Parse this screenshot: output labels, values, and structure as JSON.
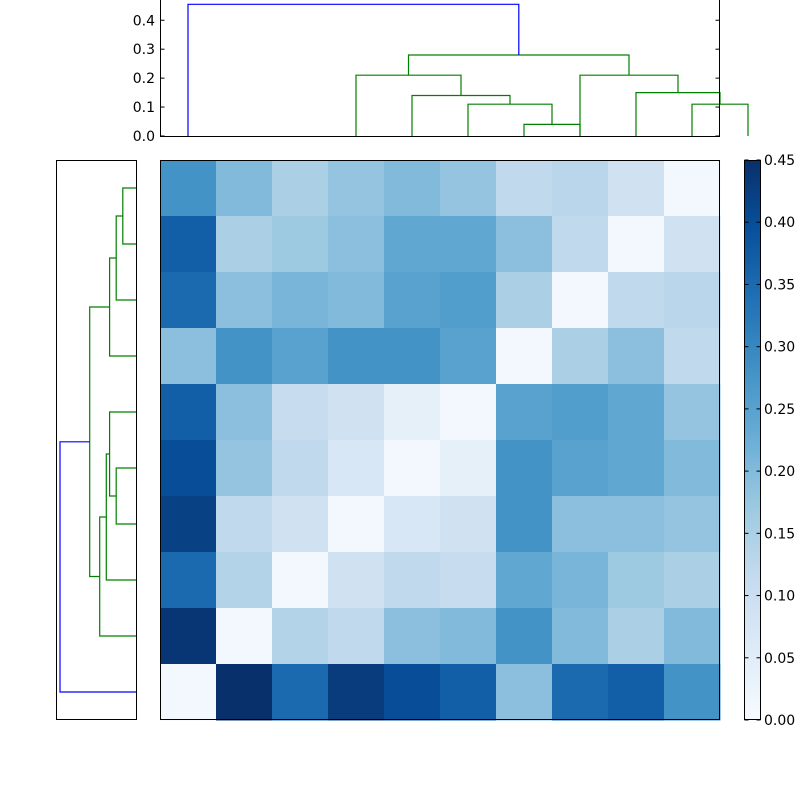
{
  "chart_data": [
    {
      "type": "dendrogram",
      "orientation": "top",
      "ylim": [
        0,
        0.47
      ],
      "yticks": [
        "0.0",
        "0.1",
        "0.2",
        "0.3",
        "0.4"
      ],
      "colors": {
        "cluster": "#008000",
        "root": "#0000ff"
      },
      "leaf_spacing": 10,
      "links": [
        {
          "x": [
            65,
            65,
            75,
            75
          ],
          "y": [
            0,
            0.04,
            0.04,
            0
          ],
          "color": "cluster"
        },
        {
          "x": [
            55,
            55,
            70,
            70
          ],
          "y": [
            0,
            0.11,
            0.11,
            0.04
          ],
          "color": "cluster"
        },
        {
          "x": [
            45,
            45,
            62.5,
            62.5
          ],
          "y": [
            0,
            0.14,
            0.14,
            0.11
          ],
          "color": "cluster"
        },
        {
          "x": [
            35,
            35,
            53.75,
            53.75
          ],
          "y": [
            0,
            0.21,
            0.21,
            0.14
          ],
          "color": "cluster"
        },
        {
          "x": [
            95,
            95,
            105,
            105
          ],
          "y": [
            0,
            0.11,
            0.11,
            0
          ],
          "color": "cluster"
        },
        {
          "x": [
            85,
            85,
            100,
            100
          ],
          "y": [
            0,
            0.15,
            0.15,
            0.11
          ],
          "color": "cluster"
        },
        {
          "x": [
            75,
            75,
            92.5,
            92.5
          ],
          "y": [
            0,
            0.21,
            0.21,
            0.15
          ],
          "color": "cluster"
        },
        {
          "x": [
            44.375,
            44.375,
            83.75,
            83.75
          ],
          "y": [
            0.21,
            0.28,
            0.28,
            0.21
          ],
          "color": "cluster"
        },
        {
          "x": [
            5,
            5,
            64.0625,
            64.0625
          ],
          "y": [
            0,
            0.455,
            0.455,
            0.28
          ],
          "color": "root"
        }
      ]
    },
    {
      "type": "dendrogram",
      "orientation": "left",
      "colors": {
        "cluster": "#008000",
        "root": "#0000ff"
      },
      "leaf_spacing": 10,
      "links": [
        {
          "x": [
            0,
            0.04,
            0.04,
            0
          ],
          "y": [
            95,
            95,
            85,
            85
          ],
          "color": "cluster"
        },
        {
          "x": [
            0,
            0.06,
            0.06,
            0.04
          ],
          "y": [
            75,
            75,
            90,
            90
          ],
          "color": "cluster"
        },
        {
          "x": [
            0,
            0.08,
            0.08,
            0.06
          ],
          "y": [
            65,
            65,
            82.5,
            82.5
          ],
          "color": "cluster"
        },
        {
          "x": [
            0,
            0.06,
            0.06,
            0
          ],
          "y": [
            45,
            45,
            35,
            35
          ],
          "color": "cluster"
        },
        {
          "x": [
            0,
            0.08,
            0.08,
            0.06
          ],
          "y": [
            55,
            55,
            40,
            40
          ],
          "color": "cluster"
        },
        {
          "x": [
            0,
            0.09,
            0.09,
            0.08
          ],
          "y": [
            25,
            25,
            47.5,
            47.5
          ],
          "color": "cluster"
        },
        {
          "x": [
            0,
            0.11,
            0.11,
            0.09
          ],
          "y": [
            15,
            15,
            36.25,
            36.25
          ],
          "color": "cluster"
        },
        {
          "x": [
            0.11,
            0.14,
            0.14,
            0.08
          ],
          "y": [
            25.625,
            25.625,
            73.75,
            73.75
          ],
          "color": "cluster"
        },
        {
          "x": [
            0,
            0.23,
            0.23,
            0.14
          ],
          "y": [
            5,
            5,
            49.6875,
            49.6875
          ],
          "color": "root"
        }
      ]
    },
    {
      "type": "heatmap",
      "colormap": "Blues",
      "vmin": 0,
      "vmax": 0.45,
      "rows": [
        [
          0.28,
          0.2,
          0.15,
          0.18,
          0.2,
          0.18,
          0.12,
          0.13,
          0.09,
          0.01
        ],
        [
          0.37,
          0.15,
          0.17,
          0.19,
          0.24,
          0.24,
          0.19,
          0.12,
          0.01,
          0.09
        ],
        [
          0.35,
          0.19,
          0.21,
          0.2,
          0.25,
          0.26,
          0.15,
          0.01,
          0.12,
          0.13
        ],
        [
          0.19,
          0.28,
          0.25,
          0.28,
          0.28,
          0.25,
          0.01,
          0.15,
          0.19,
          0.12
        ],
        [
          0.37,
          0.19,
          0.11,
          0.09,
          0.04,
          0.01,
          0.25,
          0.26,
          0.24,
          0.18
        ],
        [
          0.4,
          0.18,
          0.12,
          0.07,
          0.01,
          0.04,
          0.28,
          0.25,
          0.24,
          0.2
        ],
        [
          0.42,
          0.12,
          0.09,
          0.01,
          0.07,
          0.09,
          0.28,
          0.19,
          0.19,
          0.18
        ],
        [
          0.35,
          0.14,
          0.01,
          0.09,
          0.12,
          0.11,
          0.24,
          0.21,
          0.17,
          0.15
        ],
        [
          0.44,
          0.01,
          0.14,
          0.12,
          0.19,
          0.2,
          0.28,
          0.2,
          0.15,
          0.2
        ],
        [
          0.01,
          0.45,
          0.35,
          0.43,
          0.4,
          0.37,
          0.19,
          0.35,
          0.37,
          0.28
        ]
      ]
    },
    {
      "type": "colorbar",
      "colormap": "Blues",
      "range": [
        0,
        0.45
      ],
      "ticks": [
        "0.00",
        "0.05",
        "0.10",
        "0.15",
        "0.20",
        "0.25",
        "0.30",
        "0.35",
        "0.40",
        "0.45"
      ]
    }
  ]
}
